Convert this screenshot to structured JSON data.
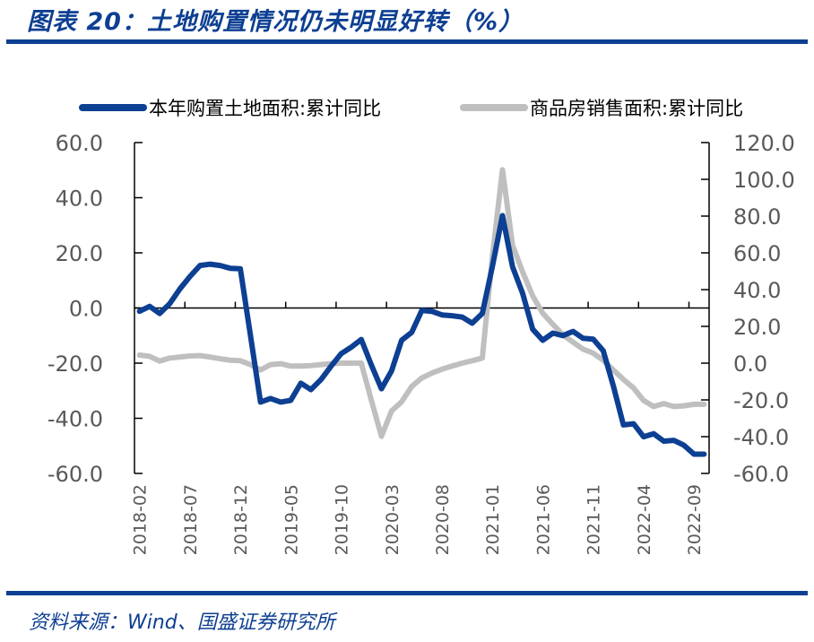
{
  "title": "图表 20：土地购置情况仍未明显好转（%）",
  "source": "资料来源：Wind、国盛证券研究所",
  "chart_data": {
    "type": "line",
    "legend_position": "top",
    "grid": false,
    "x": [
      "2018-02",
      "2018-03",
      "2018-04",
      "2018-05",
      "2018-06",
      "2018-07",
      "2018-08",
      "2018-09",
      "2018-10",
      "2018-11",
      "2018-12",
      "2019-01",
      "2019-02",
      "2019-03",
      "2019-04",
      "2019-05",
      "2019-06",
      "2019-07",
      "2019-08",
      "2019-09",
      "2019-10",
      "2019-11",
      "2019-12",
      "2020-01",
      "2020-02",
      "2020-03",
      "2020-04",
      "2020-05",
      "2020-06",
      "2020-07",
      "2020-08",
      "2020-09",
      "2020-10",
      "2020-11",
      "2020-12",
      "2021-01",
      "2021-02",
      "2021-03",
      "2021-04",
      "2021-05",
      "2021-06",
      "2021-07",
      "2021-08",
      "2021-09",
      "2021-10",
      "2021-11",
      "2021-12",
      "2022-01",
      "2022-02",
      "2022-03",
      "2022-04",
      "2022-05",
      "2022-06",
      "2022-07",
      "2022-08",
      "2022-09",
      "2022-10"
    ],
    "x_tick_labels": [
      "2018-02",
      "2018-07",
      "2018-12",
      "2019-05",
      "2019-10",
      "2020-03",
      "2020-08",
      "2021-01",
      "2021-06",
      "2021-11",
      "2022-04",
      "2022-09"
    ],
    "y_left": {
      "range": [
        -60,
        60
      ],
      "ticks": [
        "60.0",
        "40.0",
        "20.0",
        "0.0",
        "-20.0",
        "-40.0",
        "-60.0"
      ]
    },
    "y_right": {
      "range": [
        -60,
        120
      ],
      "ticks": [
        "120.0",
        "100.0",
        "80.0",
        "60.0",
        "40.0",
        "20.0",
        "0.0",
        "-20.0",
        "-40.0",
        "-60.0"
      ]
    },
    "series": [
      {
        "name": "本年购置土地面积:累计同比",
        "axis": "left",
        "color": "#0d3f92",
        "values": [
          -1.2,
          0.6,
          -2,
          1.6,
          6.9,
          11.4,
          15.4,
          15.9,
          15.4,
          14.4,
          14.2,
          -9.8,
          -34.1,
          -32.8,
          -34.1,
          -33.5,
          -27.3,
          -29.6,
          -26,
          -21.1,
          -16.6,
          -14.2,
          -11.4,
          -20.7,
          -29.3,
          -22.8,
          -11.7,
          -8.8,
          -0.9,
          -1.2,
          -2.5,
          -2.8,
          -3.3,
          -5.5,
          -2,
          15,
          33.5,
          15,
          5.3,
          -7.7,
          -11.7,
          -9.1,
          -10,
          -8.5,
          -11,
          -11.3,
          -15.5,
          -28.3,
          -42.4,
          -42,
          -46.7,
          -45.6,
          -48.3,
          -48,
          -49.8,
          -53,
          -53
        ]
      },
      {
        "name": "商品房销售面积:累计同比",
        "axis": "right",
        "color": "#bfbfbf",
        "values": [
          4.4,
          3.7,
          1.1,
          2.8,
          3.3,
          3.9,
          4.1,
          3.3,
          2.4,
          1.6,
          1.3,
          -0.8,
          -3.7,
          -0.8,
          -0.3,
          -1.6,
          -1.6,
          -1.3,
          -0.8,
          -0.3,
          0,
          0,
          0,
          -20.3,
          -39.8,
          -26,
          -21,
          -12.7,
          -8.1,
          -5.4,
          -3.3,
          -1.6,
          0,
          1.3,
          2.8,
          57.7,
          105.2,
          64.2,
          49.6,
          36.6,
          27.2,
          21.1,
          15.4,
          11.4,
          7.6,
          5.4,
          1.6,
          -3.7,
          -8.9,
          -13.5,
          -20.3,
          -23.6,
          -22,
          -23.6,
          -23.2,
          -22.4,
          -22.4
        ]
      }
    ]
  }
}
